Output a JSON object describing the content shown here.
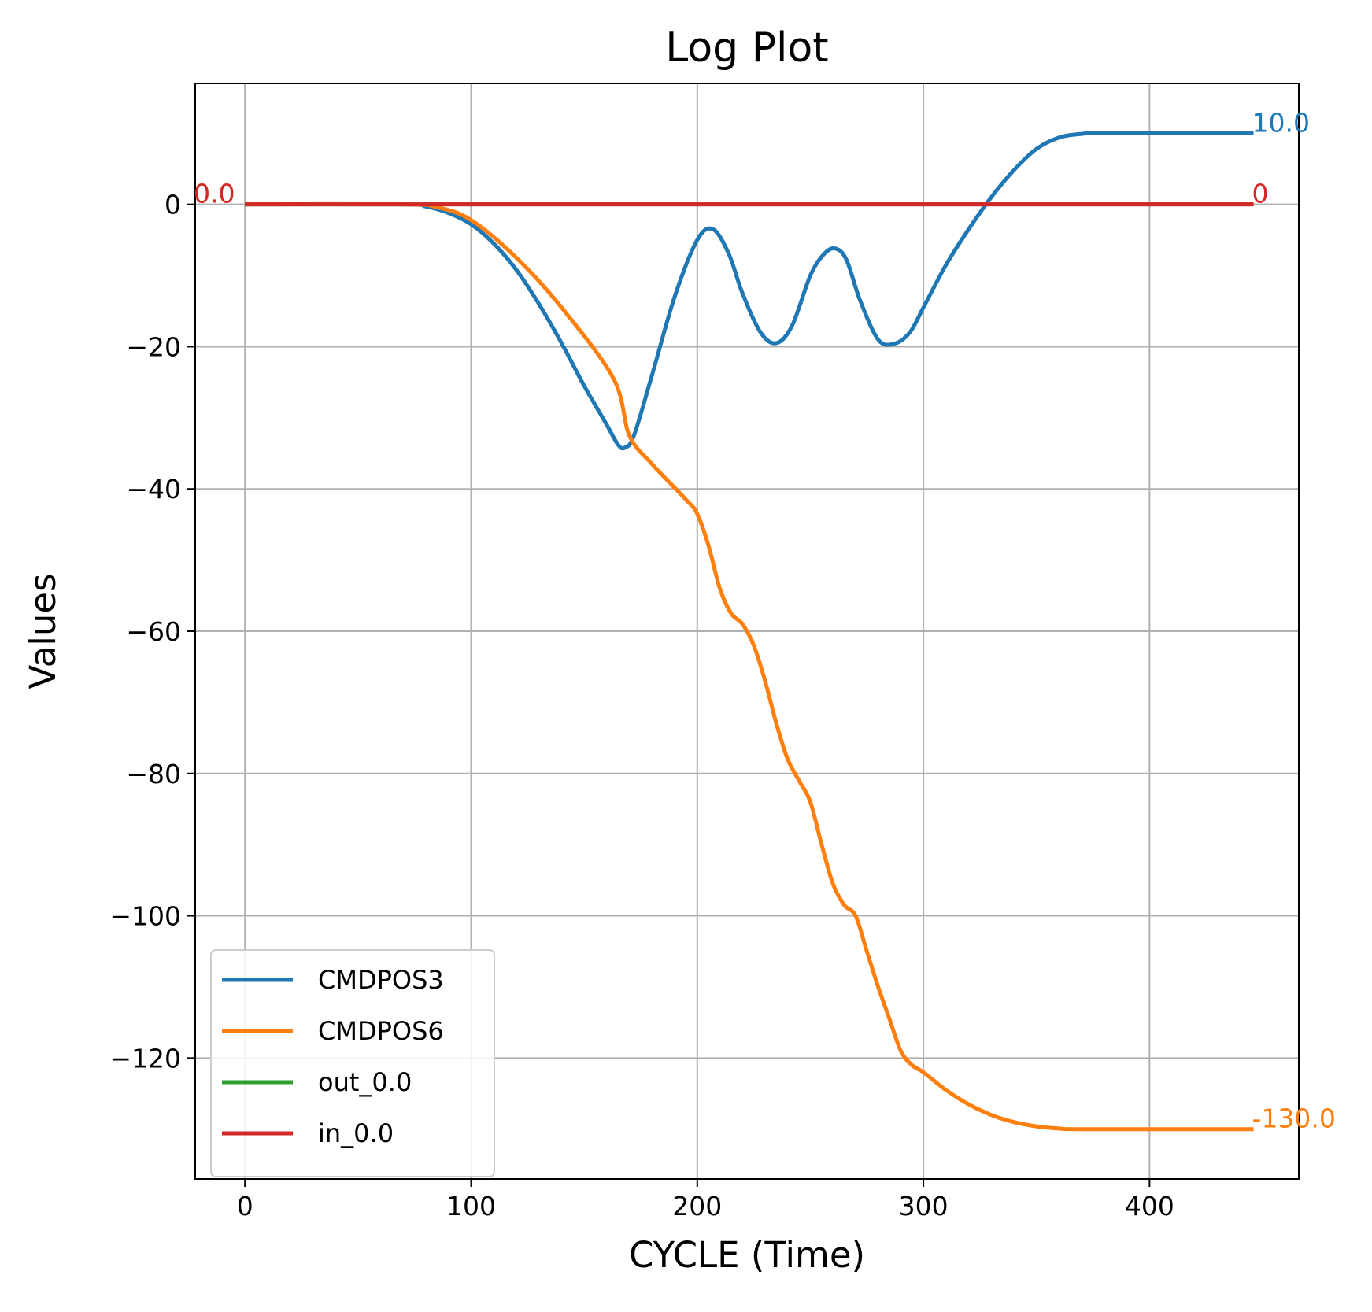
{
  "chart_data": {
    "type": "line",
    "title": "Log Plot",
    "xlabel": "CYCLE (Time)",
    "ylabel": "Values",
    "xlim": [
      -22,
      466
    ],
    "ylim": [
      -137,
      17
    ],
    "xticks": [
      0,
      100,
      200,
      300,
      400
    ],
    "yticks": [
      0,
      -20,
      -40,
      -60,
      -80,
      -100,
      -120
    ],
    "xtick_labels": [
      "0",
      "100",
      "200",
      "300",
      "400"
    ],
    "ytick_labels": [
      "0",
      "−20",
      "−40",
      "−60",
      "−80",
      "−100",
      "−120"
    ],
    "grid": true,
    "legend_position": "lower-left",
    "series": [
      {
        "name": "CMDPOS3",
        "color": "#1f77b4",
        "x": [
          0,
          70,
          80,
          90,
          100,
          110,
          120,
          130,
          140,
          150,
          160,
          165,
          168,
          172,
          180,
          190,
          200,
          207,
          214,
          220,
          228,
          235,
          242,
          250,
          256,
          261,
          266,
          272,
          280,
          287,
          294,
          300,
          310,
          320,
          330,
          340,
          350,
          360,
          370,
          380,
          446
        ],
        "y": [
          0,
          0,
          -0.3,
          -1.2,
          -2.8,
          -5.5,
          -9.2,
          -14,
          -19.5,
          -25.5,
          -31,
          -33.8,
          -34.2,
          -32.5,
          -24,
          -13,
          -5,
          -3.5,
          -7,
          -12.5,
          -18,
          -19.5,
          -17,
          -10,
          -7,
          -6.2,
          -7.8,
          -13.5,
          -19,
          -19.6,
          -18,
          -14.5,
          -8.5,
          -3.5,
          1,
          4.8,
          7.8,
          9.4,
          9.9,
          10,
          10
        ]
      },
      {
        "name": "CMDPOS6",
        "color": "#ff7f0e",
        "x": [
          0,
          70,
          85,
          100,
          120,
          140,
          163,
          170,
          180,
          195,
          200,
          205,
          210,
          215,
          220,
          225,
          230,
          235,
          240,
          245,
          250,
          255,
          260,
          265,
          270,
          275,
          280,
          285,
          290,
          295,
          300,
          310,
          320,
          330,
          340,
          350,
          360,
          372,
          446
        ],
        "y": [
          0,
          0,
          -0.4,
          -2.2,
          -7.5,
          -14.5,
          -24.5,
          -32.5,
          -36.5,
          -41.5,
          -43.5,
          -48,
          -54,
          -57.5,
          -59,
          -62,
          -67,
          -73,
          -78,
          -81,
          -84,
          -90,
          -95.5,
          -98.5,
          -100,
          -105,
          -110,
          -114.5,
          -119,
          -121,
          -122,
          -124.5,
          -126.5,
          -128,
          -129,
          -129.6,
          -129.9,
          -130,
          -130
        ]
      },
      {
        "name": "out_0.0",
        "color": "#2ca02c",
        "x": [
          0,
          446
        ],
        "y": [
          0,
          0
        ]
      },
      {
        "name": "in_0.0",
        "color": "#d62728",
        "x": [
          0,
          446
        ],
        "y": [
          0,
          0
        ]
      }
    ],
    "annotations": [
      {
        "text": "10.0",
        "x": 446,
        "y": 10,
        "color": "#1f77b4"
      },
      {
        "text": "-130.0",
        "x": 446,
        "y": -130,
        "color": "#ff7f0e"
      },
      {
        "text": "0",
        "x": 446,
        "y": 0,
        "color": "#d62728"
      },
      {
        "text": "0.0",
        "x": -22,
        "y": 0,
        "color": "#ff7f0e"
      },
      {
        "text": "0.0",
        "x": -22,
        "y": 0,
        "color": "#d62728"
      }
    ]
  }
}
